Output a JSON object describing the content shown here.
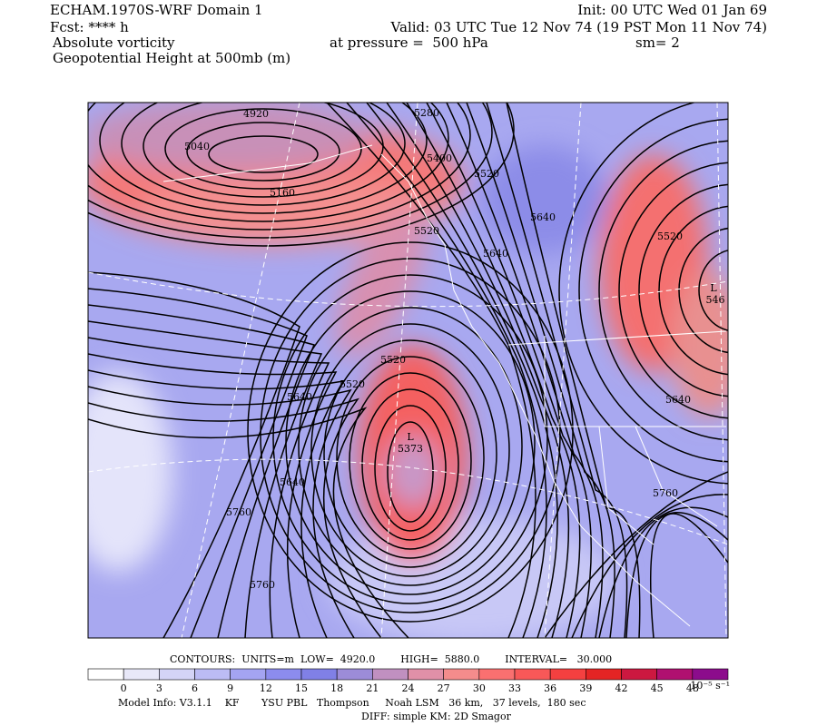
{
  "header": {
    "title": "ECHAM.1970S-WRF Domain 1",
    "init": "Init: 00 UTC Wed 01 Jan 69",
    "forecast": "Fcst: **** h",
    "valid": "Valid: 03 UTC Tue 12 Nov 74 (19 PST Mon 11 Nov 74)",
    "field": "Absolute vorticity",
    "level": "at pressure =  500 hPa",
    "smoothing": "sm= 2",
    "contour_field": "Geopotential Height at 500mb (m)"
  },
  "contour_labels": [
    "4920",
    "5280",
    "5040",
    "5400",
    "5520",
    "5160",
    "5640",
    "5520",
    "5640",
    "5520",
    "L",
    "546",
    "5520",
    "5520",
    "5640",
    "L",
    "5373",
    "5640",
    "5640",
    "5760",
    "5760",
    "5760"
  ],
  "contour_info": "CONTOURS:  UNITS=m  LOW=  4920.0        HIGH=  5880.0        INTERVAL=   30.000",
  "colorbar": {
    "colors": [
      "#ffffff",
      "#e8e8f8",
      "#d4d4f6",
      "#bcbcf4",
      "#a4a4f2",
      "#8c8cee",
      "#8080e6",
      "#9c8cd8",
      "#c090c0",
      "#e090a8",
      "#f48c8c",
      "#fa7070",
      "#f85858",
      "#f44040",
      "#e42424",
      "#cc1840",
      "#b01070",
      "#8c0c8c"
    ],
    "labels": [
      "0",
      "3",
      "6",
      "9",
      "12",
      "15",
      "18",
      "21",
      "24",
      "27",
      "30",
      "33",
      "36",
      "39",
      "42",
      "45",
      "48"
    ],
    "units": "10⁻⁵ s⁻¹"
  },
  "model_info": "Model Info: V3.1.1    KF       YSU PBL   Thompson     Noah LSM   36 km,   37 levels,  180 sec",
  "diff_info": "DIFF: simple KM: 2D Smagor"
}
